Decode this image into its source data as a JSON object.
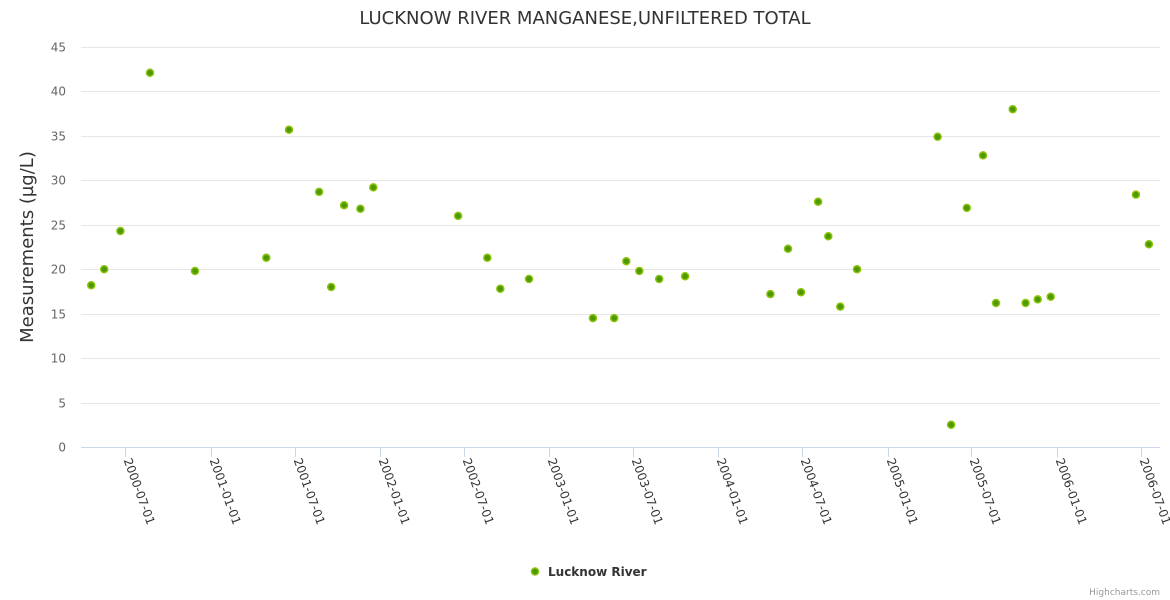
{
  "chart_data": {
    "type": "scatter",
    "title": "LUCKNOW RIVER MANGANESE,UNFILTERED TOTAL",
    "xlabel": "",
    "ylabel": "Measurements (µg/L)",
    "ylim": [
      0,
      45
    ],
    "yticks": [
      0,
      5,
      10,
      15,
      20,
      25,
      30,
      35,
      40,
      45
    ],
    "xlim": [
      "2000-03-27",
      "2006-08-12"
    ],
    "xticks": [
      "2000-07-01",
      "2001-01-01",
      "2001-07-01",
      "2002-01-01",
      "2002-07-01",
      "2003-01-01",
      "2003-07-01",
      "2004-01-01",
      "2004-07-01",
      "2005-01-01",
      "2005-07-01",
      "2006-01-01",
      "2006-07-01"
    ],
    "grid": true,
    "legend_position": "bottom-center",
    "series": [
      {
        "name": "Lucknow River",
        "color": "#4c9a00",
        "points": [
          [
            "2000-04-18",
            18.2
          ],
          [
            "2000-05-16",
            20.0
          ],
          [
            "2000-06-20",
            24.3
          ],
          [
            "2000-08-23",
            42.1
          ],
          [
            "2000-11-28",
            19.8
          ],
          [
            "2001-05-01",
            21.3
          ],
          [
            "2001-06-19",
            35.7
          ],
          [
            "2001-08-23",
            28.7
          ],
          [
            "2001-09-18",
            18.0
          ],
          [
            "2001-10-16",
            27.2
          ],
          [
            "2001-11-20",
            26.8
          ],
          [
            "2001-12-18",
            29.2
          ],
          [
            "2002-06-19",
            26.0
          ],
          [
            "2002-08-21",
            21.3
          ],
          [
            "2002-09-18",
            17.8
          ],
          [
            "2002-11-19",
            18.9
          ],
          [
            "2003-04-06",
            14.5
          ],
          [
            "2003-05-22",
            14.5
          ],
          [
            "2003-06-17",
            20.9
          ],
          [
            "2003-07-15",
            19.8
          ],
          [
            "2003-08-27",
            18.9
          ],
          [
            "2003-10-22",
            19.2
          ],
          [
            "2004-04-23",
            17.2
          ],
          [
            "2004-05-31",
            22.3
          ],
          [
            "2004-06-28",
            17.4
          ],
          [
            "2004-08-04",
            27.6
          ],
          [
            "2004-08-26",
            23.7
          ],
          [
            "2004-09-21",
            15.8
          ],
          [
            "2004-10-27",
            20.0
          ],
          [
            "2005-04-19",
            34.9
          ],
          [
            "2005-05-18",
            2.5
          ],
          [
            "2005-06-21",
            26.9
          ],
          [
            "2005-07-26",
            32.8
          ],
          [
            "2005-08-23",
            16.2
          ],
          [
            "2005-09-28",
            38.0
          ],
          [
            "2005-10-26",
            16.2
          ],
          [
            "2005-11-21",
            16.6
          ],
          [
            "2005-12-19",
            16.9
          ],
          [
            "2006-06-21",
            28.4
          ],
          [
            "2006-07-19",
            22.8
          ]
        ]
      }
    ]
  },
  "credits": "Highcharts.com"
}
